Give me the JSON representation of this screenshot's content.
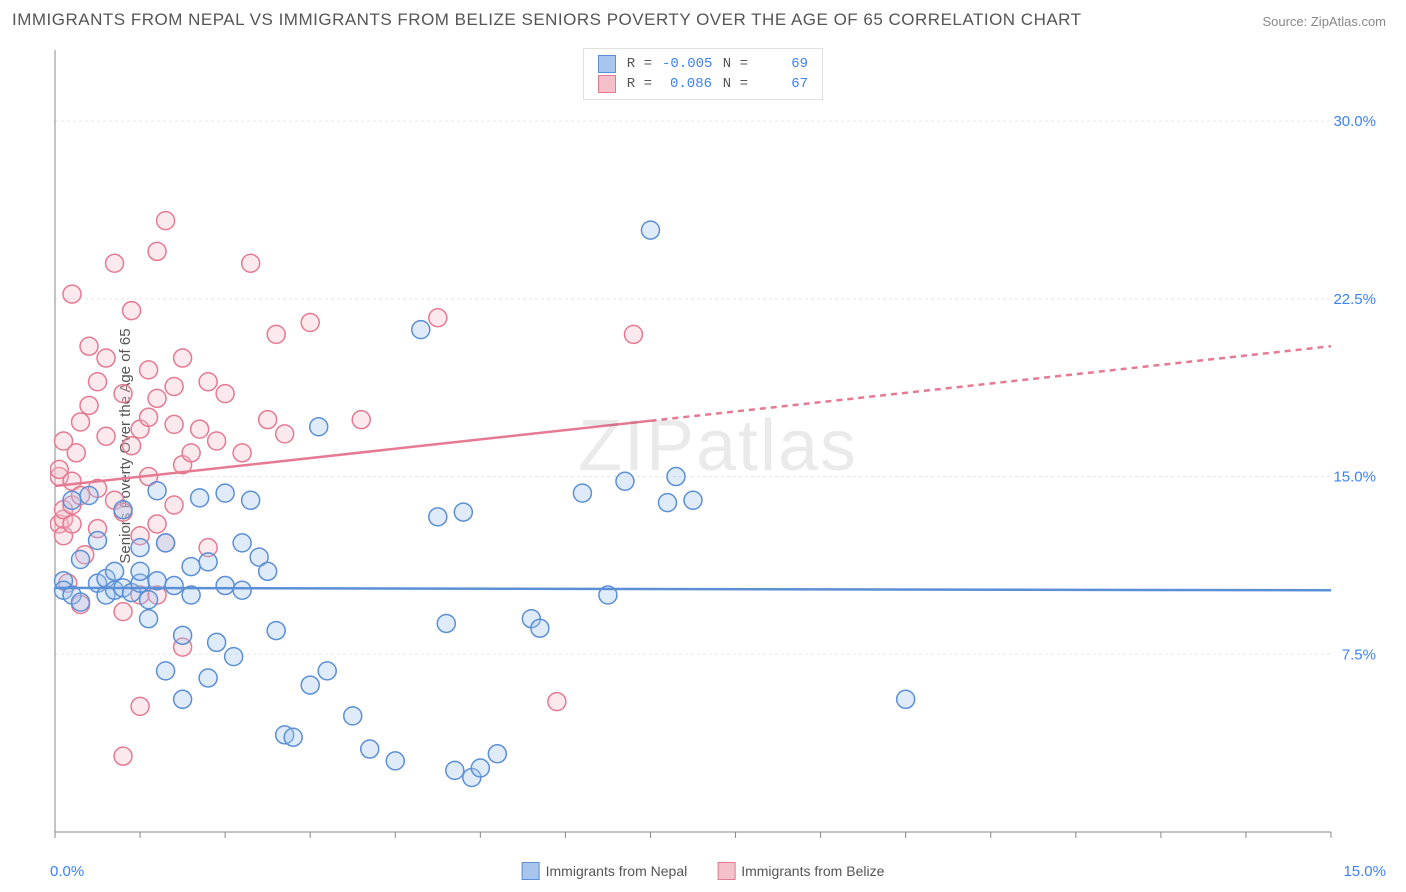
{
  "title": "IMMIGRANTS FROM NEPAL VS IMMIGRANTS FROM BELIZE SENIORS POVERTY OVER THE AGE OF 65 CORRELATION CHART",
  "source_label": "Source: ZipAtlas.com",
  "watermark": "ZIPatlas",
  "y_axis_label": "Seniors Poverty Over the Age of 65",
  "series_a_name": "Immigrants from Nepal",
  "series_b_name": "Immigrants from Belize",
  "chart": {
    "type": "scatter",
    "xlim": [
      0,
      15
    ],
    "ylim": [
      0,
      33
    ],
    "x_tick_labels": [
      "0.0%",
      "15.0%"
    ],
    "y_tick_values": [
      7.5,
      15.0,
      22.5,
      30.0
    ],
    "y_tick_labels": [
      "7.5%",
      "15.0%",
      "22.5%",
      "30.0%"
    ],
    "grid_color": "#e5e5e5",
    "axis_color": "#888888",
    "background_color": "#ffffff",
    "tick_label_color": "#3b82f6",
    "label_fontsize": 15,
    "title_fontsize": 17,
    "marker_radius": 9,
    "marker_stroke_width": 1.5,
    "marker_fill_opacity": 0.35,
    "trend_line_width": 2.5,
    "trend_dash_pattern": "6,5",
    "series_a": {
      "fill": "#a7c5ed",
      "stroke": "#5b8fd6",
      "R": "-0.005",
      "N": "69",
      "trend": {
        "y_at_xmin": 10.3,
        "y_at_xmax": 10.2,
        "solid_until_x": 15.0
      },
      "points": [
        [
          0.1,
          10.6
        ],
        [
          0.1,
          10.2
        ],
        [
          0.2,
          10.0
        ],
        [
          0.2,
          14.0
        ],
        [
          0.3,
          11.5
        ],
        [
          0.3,
          9.7
        ],
        [
          0.4,
          14.2
        ],
        [
          0.5,
          10.5
        ],
        [
          0.5,
          12.3
        ],
        [
          0.6,
          10.0
        ],
        [
          0.6,
          10.7
        ],
        [
          0.7,
          10.2
        ],
        [
          0.7,
          11.0
        ],
        [
          0.8,
          10.3
        ],
        [
          0.8,
          13.6
        ],
        [
          0.9,
          10.1
        ],
        [
          1.0,
          12.0
        ],
        [
          1.0,
          10.5
        ],
        [
          1.0,
          11.0
        ],
        [
          1.1,
          9.8
        ],
        [
          1.1,
          9.0
        ],
        [
          1.2,
          10.6
        ],
        [
          1.2,
          14.4
        ],
        [
          1.3,
          6.8
        ],
        [
          1.3,
          12.2
        ],
        [
          1.4,
          10.4
        ],
        [
          1.5,
          5.6
        ],
        [
          1.5,
          8.3
        ],
        [
          1.6,
          11.2
        ],
        [
          1.6,
          10.0
        ],
        [
          1.7,
          14.1
        ],
        [
          1.8,
          6.5
        ],
        [
          1.8,
          11.4
        ],
        [
          1.9,
          8.0
        ],
        [
          2.0,
          10.4
        ],
        [
          2.0,
          14.3
        ],
        [
          2.1,
          7.4
        ],
        [
          2.2,
          12.2
        ],
        [
          2.2,
          10.2
        ],
        [
          2.3,
          14.0
        ],
        [
          2.4,
          11.6
        ],
        [
          2.5,
          11.0
        ],
        [
          2.6,
          8.5
        ],
        [
          2.7,
          4.1
        ],
        [
          2.8,
          4.0
        ],
        [
          3.0,
          6.2
        ],
        [
          3.1,
          17.1
        ],
        [
          3.2,
          6.8
        ],
        [
          3.5,
          4.9
        ],
        [
          3.7,
          3.5
        ],
        [
          4.0,
          3.0
        ],
        [
          4.3,
          21.2
        ],
        [
          4.5,
          13.3
        ],
        [
          4.6,
          8.8
        ],
        [
          4.7,
          2.6
        ],
        [
          4.8,
          13.5
        ],
        [
          4.9,
          2.3
        ],
        [
          5.0,
          2.7
        ],
        [
          5.2,
          3.3
        ],
        [
          5.6,
          9.0
        ],
        [
          5.7,
          8.6
        ],
        [
          6.2,
          14.3
        ],
        [
          6.5,
          10.0
        ],
        [
          6.7,
          14.8
        ],
        [
          7.0,
          25.4
        ],
        [
          7.2,
          13.9
        ],
        [
          7.3,
          15.0
        ],
        [
          7.5,
          14.0
        ],
        [
          10.0,
          5.6
        ]
      ]
    },
    "series_b": {
      "fill": "#f4c0ca",
      "stroke": "#e67a92",
      "R": "0.086",
      "N": "67",
      "trend": {
        "y_at_xmin": 14.6,
        "y_at_xmax": 20.5,
        "solid_until_x": 7.0
      },
      "points": [
        [
          0.05,
          15.0
        ],
        [
          0.05,
          15.3
        ],
        [
          0.05,
          13.0
        ],
        [
          0.1,
          13.2
        ],
        [
          0.1,
          13.6
        ],
        [
          0.1,
          16.5
        ],
        [
          0.1,
          12.5
        ],
        [
          0.15,
          10.5
        ],
        [
          0.2,
          14.8
        ],
        [
          0.2,
          13.8
        ],
        [
          0.2,
          13.0
        ],
        [
          0.2,
          22.7
        ],
        [
          0.25,
          16.0
        ],
        [
          0.3,
          17.3
        ],
        [
          0.3,
          14.2
        ],
        [
          0.3,
          9.6
        ],
        [
          0.35,
          11.7
        ],
        [
          0.4,
          20.5
        ],
        [
          0.4,
          18.0
        ],
        [
          0.5,
          12.8
        ],
        [
          0.5,
          19.0
        ],
        [
          0.5,
          14.5
        ],
        [
          0.6,
          20.0
        ],
        [
          0.6,
          16.7
        ],
        [
          0.7,
          14.0
        ],
        [
          0.7,
          24.0
        ],
        [
          0.8,
          18.5
        ],
        [
          0.8,
          13.5
        ],
        [
          0.8,
          9.3
        ],
        [
          0.8,
          3.2
        ],
        [
          0.9,
          16.3
        ],
        [
          0.9,
          22.0
        ],
        [
          1.0,
          17.0
        ],
        [
          1.0,
          12.5
        ],
        [
          1.0,
          10.0
        ],
        [
          1.0,
          5.3
        ],
        [
          1.1,
          19.5
        ],
        [
          1.1,
          17.5
        ],
        [
          1.1,
          15.0
        ],
        [
          1.2,
          24.5
        ],
        [
          1.2,
          10.0
        ],
        [
          1.2,
          13.0
        ],
        [
          1.2,
          18.3
        ],
        [
          1.3,
          25.8
        ],
        [
          1.3,
          12.2
        ],
        [
          1.4,
          17.2
        ],
        [
          1.4,
          13.8
        ],
        [
          1.4,
          18.8
        ],
        [
          1.5,
          20.0
        ],
        [
          1.5,
          15.5
        ],
        [
          1.5,
          7.8
        ],
        [
          1.6,
          16.0
        ],
        [
          1.7,
          17.0
        ],
        [
          1.8,
          12.0
        ],
        [
          1.8,
          19.0
        ],
        [
          1.9,
          16.5
        ],
        [
          2.0,
          18.5
        ],
        [
          2.2,
          16.0
        ],
        [
          2.3,
          24.0
        ],
        [
          2.5,
          17.4
        ],
        [
          2.6,
          21.0
        ],
        [
          2.7,
          16.8
        ],
        [
          3.0,
          21.5
        ],
        [
          3.6,
          17.4
        ],
        [
          4.5,
          21.7
        ],
        [
          5.9,
          5.5
        ],
        [
          6.8,
          21.0
        ]
      ]
    }
  }
}
